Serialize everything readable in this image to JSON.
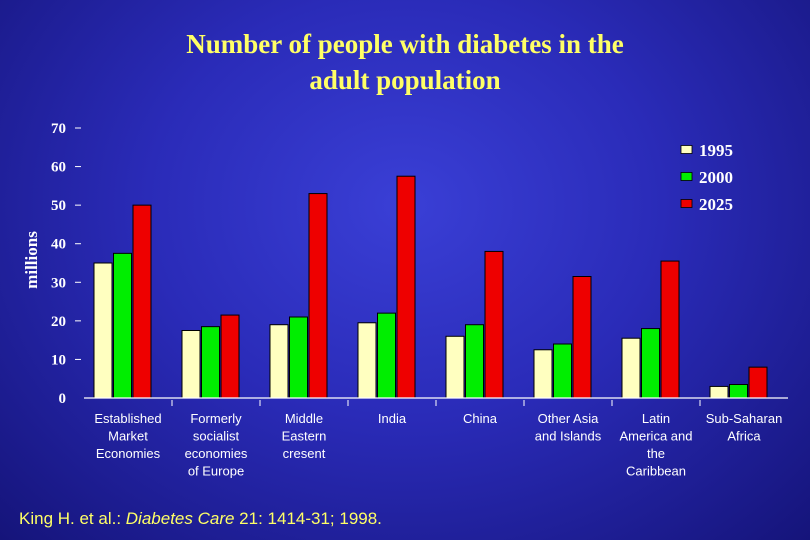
{
  "chart_data": {
    "type": "bar",
    "title_lines": [
      "Number of people with diabetes in the",
      "adult population"
    ],
    "ylabel": "millions",
    "xlabel": "",
    "ylim": [
      0,
      70
    ],
    "yticks": [
      0,
      10,
      20,
      30,
      40,
      50,
      60,
      70
    ],
    "grid": false,
    "legend_position": "top-right",
    "categories": [
      [
        "Established",
        "Market",
        "Economies"
      ],
      [
        "Formerly",
        "socialist",
        "economies",
        "of Europe"
      ],
      [
        "Middle",
        "Eastern",
        "cresent"
      ],
      [
        "India"
      ],
      [
        "China"
      ],
      [
        "Other Asia",
        "and Islands"
      ],
      [
        "Latin",
        "America and",
        "the",
        "Caribbean"
      ],
      [
        "Sub-Saharan",
        "Africa"
      ]
    ],
    "series": [
      {
        "name": "1995",
        "color": "#ffffc0",
        "values": [
          35,
          17.5,
          19,
          19.5,
          16,
          12.5,
          15.5,
          3
        ]
      },
      {
        "name": "2000",
        "color": "#00ee00",
        "values": [
          37.5,
          18.5,
          21,
          22,
          19,
          14,
          18,
          3.5
        ]
      },
      {
        "name": "2025",
        "color": "#ee0000",
        "values": [
          50,
          21.5,
          53,
          57.5,
          38,
          31.5,
          35.5,
          8
        ]
      }
    ]
  },
  "citation": {
    "authors": "King H. et al.: ",
    "journal": "Diabetes Care",
    "details": " 21: 1414-31; 1998."
  }
}
